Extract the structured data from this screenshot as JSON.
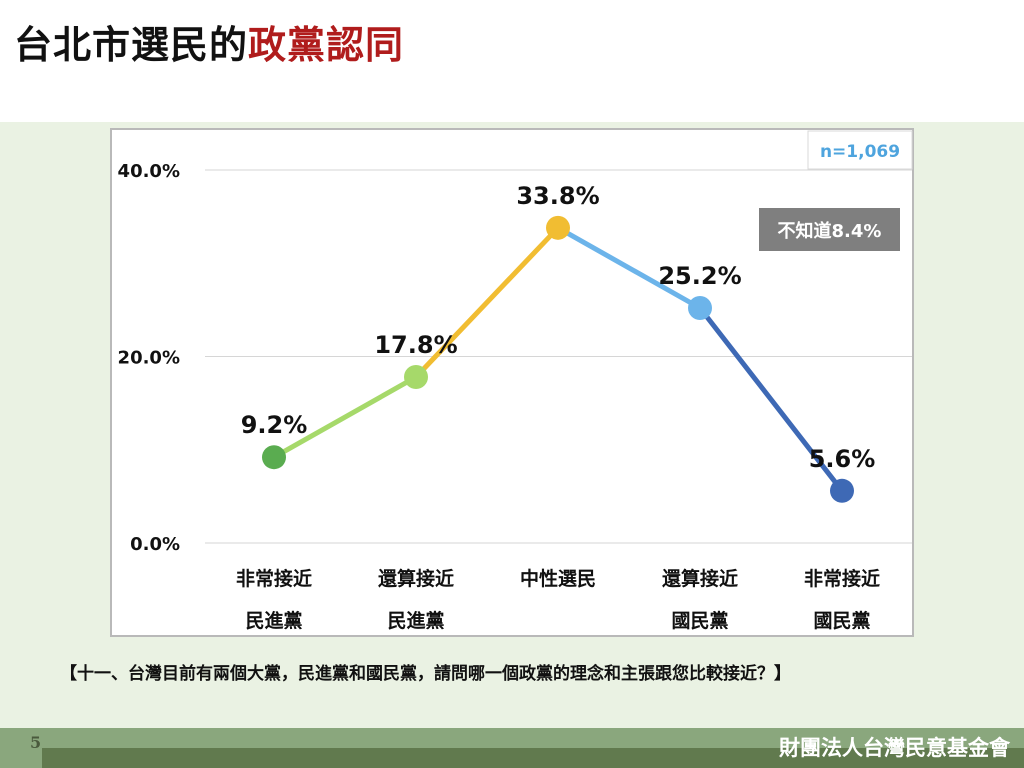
{
  "header": {
    "title_prefix": "台北市選民的",
    "title_highlight": "政黨認同"
  },
  "chart_data": {
    "type": "line",
    "categories": [
      [
        "非常接近",
        "民進黨"
      ],
      [
        "還算接近",
        "民進黨"
      ],
      [
        "中性選民"
      ],
      [
        "還算接近",
        "國民黨"
      ],
      [
        "非常接近",
        "國民黨"
      ]
    ],
    "values": [
      9.2,
      17.8,
      33.8,
      25.2,
      5.6
    ],
    "value_labels": [
      "9.2%",
      "17.8%",
      "33.8%",
      "25.2%",
      "5.6%"
    ],
    "point_colors": [
      "#5aac50",
      "#a6d96a",
      "#f1bd32",
      "#6cb4ea",
      "#3e69b5"
    ],
    "segment_colors": [
      "#a6d96a",
      "#f1bd32",
      "#6cb4ea",
      "#3e69b5"
    ],
    "yticks": [
      "0.0%",
      "20.0%",
      "40.0%"
    ],
    "ytick_values": [
      0,
      20,
      40
    ],
    "ylim": [
      0,
      40
    ],
    "grid": true,
    "sample_note": "n=1,069",
    "dont_know_note": "不知道8.4%"
  },
  "question": "【十一、台灣目前有兩個大黨，民進黨和國民黨，請問哪一個政黨的理念和主張跟您比較接近？】",
  "footer": {
    "page_number": "5",
    "organization": "財團法人台灣民意基金會"
  }
}
